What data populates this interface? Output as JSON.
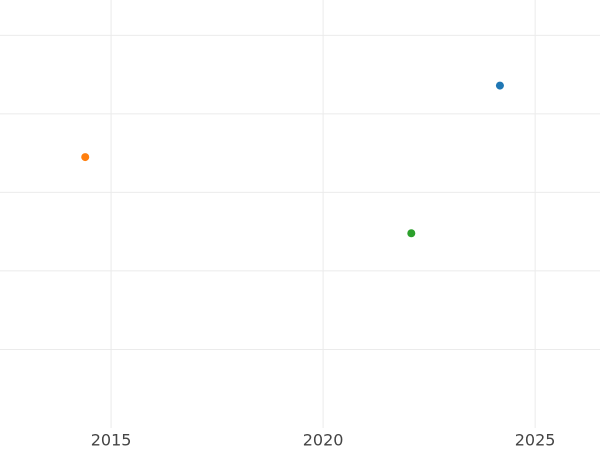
{
  "chart_data": {
    "type": "scatter",
    "x": [
      2024.17,
      2014.39,
      2022.08
    ],
    "values": [
      4.36,
      3.45,
      2.48
    ],
    "colors": [
      "#1f77b4",
      "#ff7f0e",
      "#2ca02c"
    ],
    "xlim": [
      2012.38,
      2026.53
    ],
    "xticks": [
      2015,
      2020,
      2025
    ],
    "ylim": [
      0,
      5.45
    ],
    "yticks": [
      1,
      2,
      3,
      4,
      5
    ],
    "ytick_labels": false,
    "grid": true
  }
}
